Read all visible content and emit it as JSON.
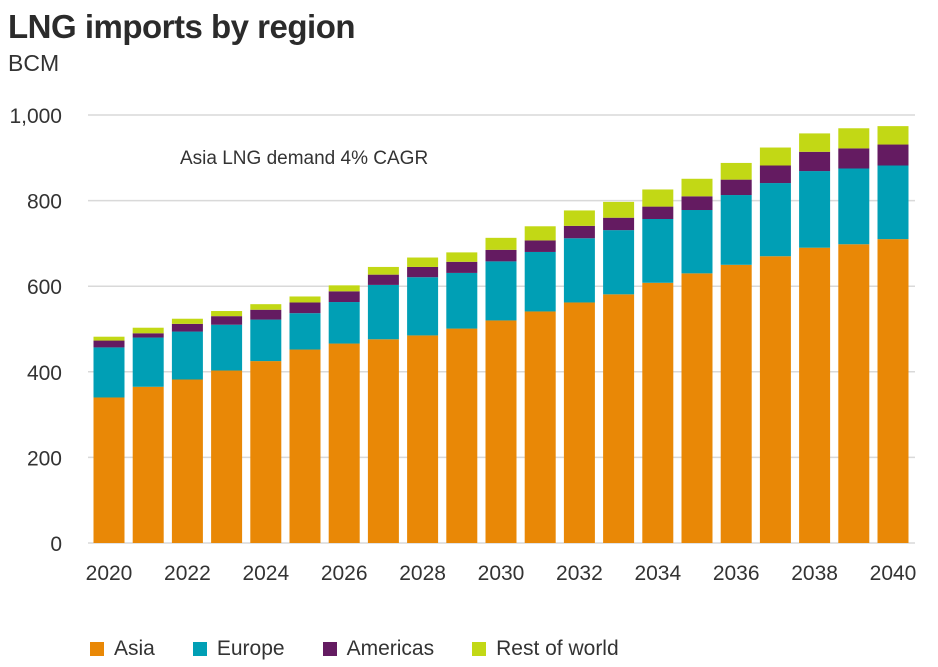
{
  "chart_data": {
    "type": "bar",
    "stacked": true,
    "title": "LNG imports by region",
    "subtitle": "BCM",
    "annotation": "Asia LNG demand 4% CAGR",
    "categories": [
      "2020",
      "2021",
      "2022",
      "2023",
      "2024",
      "2025",
      "2026",
      "2027",
      "2028",
      "2029",
      "2030",
      "2031",
      "2032",
      "2033",
      "2034",
      "2035",
      "2036",
      "2037",
      "2038",
      "2039",
      "2040"
    ],
    "x_tick_labels": [
      "2020",
      "2022",
      "2024",
      "2026",
      "2028",
      "2030",
      "2032",
      "2034",
      "2036",
      "2038",
      "2040"
    ],
    "y_tick_labels": [
      "0",
      "200",
      "400",
      "600",
      "800",
      "1,000"
    ],
    "ylim": [
      0,
      1000
    ],
    "grid": true,
    "legend_position": "bottom",
    "series": [
      {
        "name": "Asia",
        "color": "#E98806",
        "values": [
          340,
          365,
          382,
          403,
          425,
          452,
          466,
          476,
          485,
          501,
          520,
          541,
          562,
          581,
          608,
          630,
          650,
          670,
          690,
          698,
          710
        ]
      },
      {
        "name": "Europe",
        "color": "#009FB5",
        "values": [
          117,
          115,
          112,
          107,
          97,
          85,
          97,
          127,
          136,
          130,
          138,
          139,
          150,
          150,
          149,
          148,
          163,
          171,
          179,
          177,
          172
        ]
      },
      {
        "name": "Americas",
        "color": "#641B61",
        "values": [
          16,
          10,
          18,
          20,
          23,
          25,
          25,
          24,
          24,
          26,
          27,
          27,
          29,
          29,
          29,
          32,
          36,
          41,
          45,
          47,
          49
        ]
      },
      {
        "name": "Rest of world",
        "color": "#C2D815",
        "values": [
          9,
          13,
          12,
          12,
          13,
          14,
          14,
          18,
          22,
          22,
          28,
          33,
          36,
          37,
          40,
          41,
          39,
          42,
          43,
          47,
          43
        ]
      }
    ]
  }
}
